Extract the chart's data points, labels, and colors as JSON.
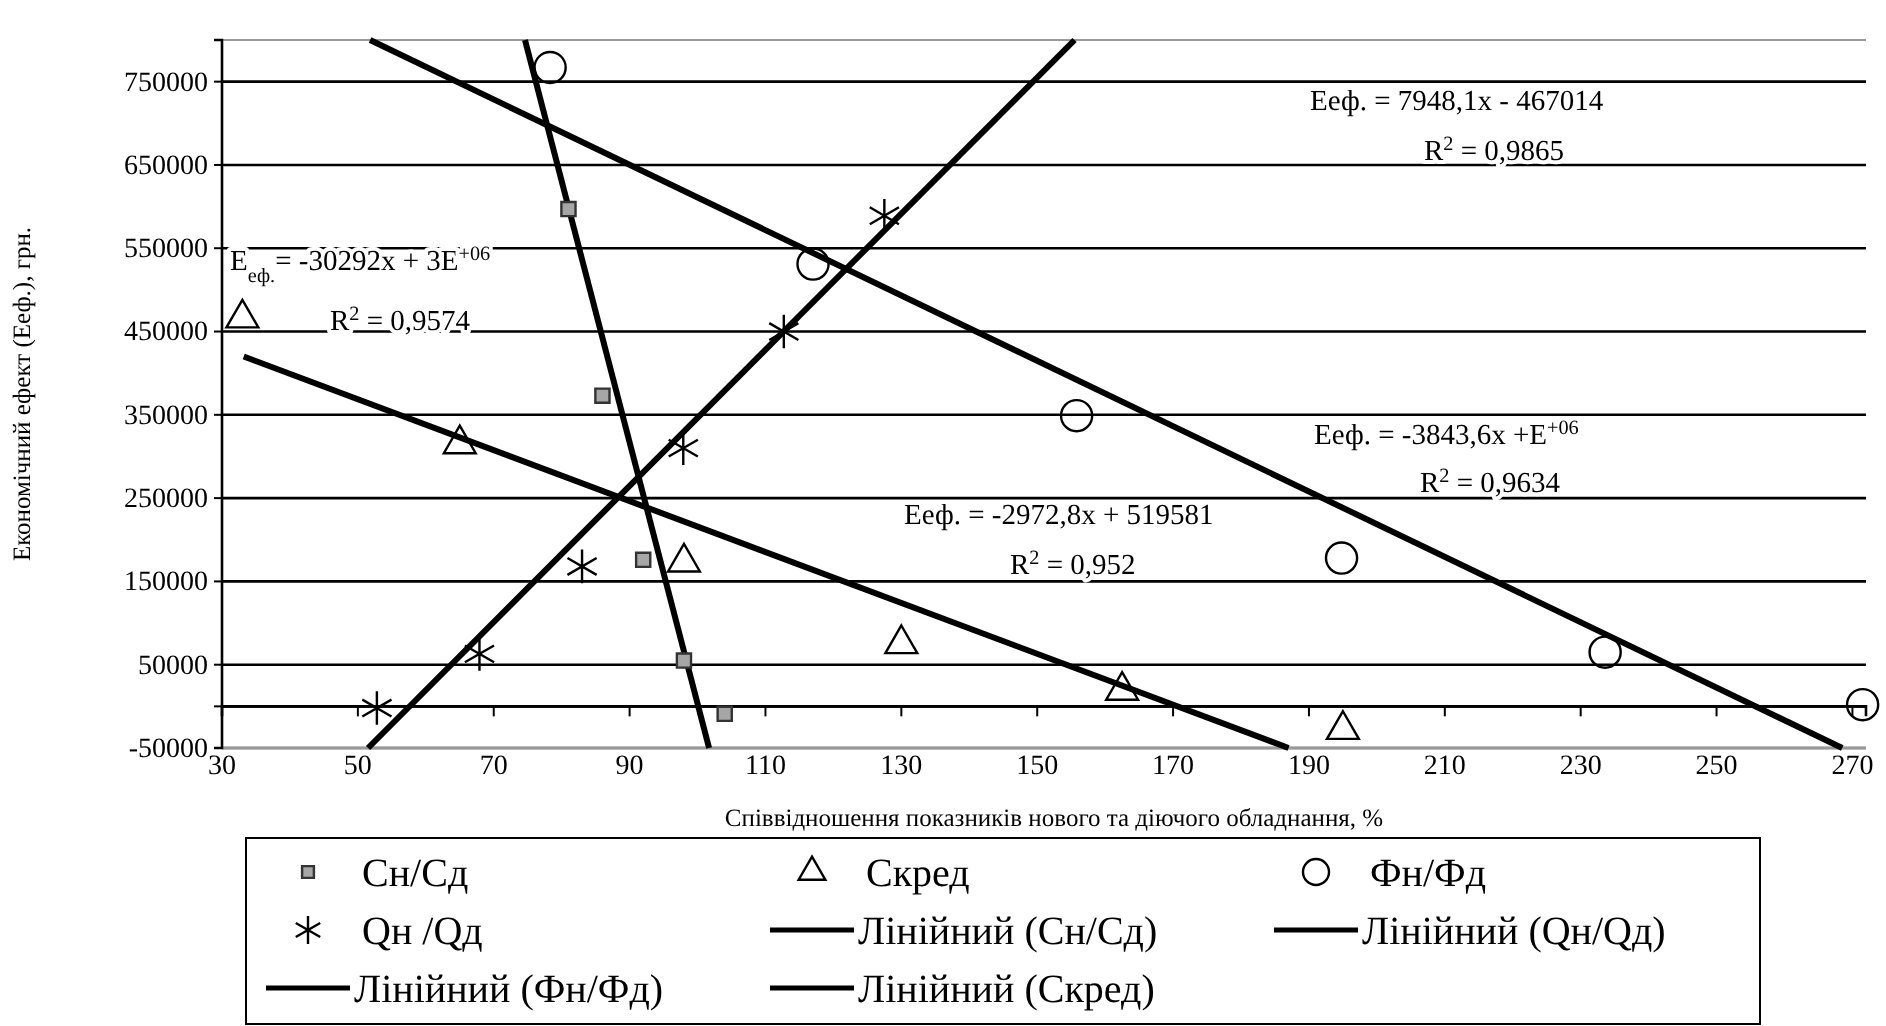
{
  "chart_data": {
    "type": "scatter",
    "xlabel": "Співвідношення показників нового та діючого обладнання, %",
    "ylabel": "Економічний ефект (Eеф.),  грн.",
    "xlim": [
      30,
      272
    ],
    "xticks": [
      30,
      50,
      70,
      90,
      110,
      130,
      150,
      170,
      190,
      210,
      230,
      250,
      270
    ],
    "ylim": [
      -50000,
      800000
    ],
    "yticks": [
      -50000,
      {
        "value": 0,
        "label": null
      },
      50000,
      150000,
      250000,
      350000,
      450000,
      550000,
      650000,
      750000
    ],
    "grid": "y",
    "legend": "bottom",
    "series": [
      {
        "name": "Сн/Сд",
        "marker": "square",
        "color": "#a6a6a6",
        "x": [
          81,
          86,
          92,
          98,
          104
        ],
        "values": [
          597000,
          373000,
          176000,
          55000,
          -9000
        ]
      },
      {
        "name": "Скред",
        "marker": "triangle",
        "color": "#000000",
        "x": [
          33,
          65,
          98,
          130,
          162.5,
          195
        ],
        "values": [
          466000,
          315000,
          173000,
          75000,
          19000,
          -28000
        ]
      },
      {
        "name": "Фн/Фд",
        "marker": "circle",
        "color": "#000000",
        "x": [
          78.3,
          117,
          155.8,
          194.8,
          233.6,
          271.5
        ],
        "values": [
          767000,
          531000,
          349000,
          178000,
          65000,
          2000
        ]
      },
      {
        "name": "Qн /Qд",
        "marker": "cross",
        "color": "#000000",
        "x": [
          52.8,
          67.9,
          83,
          97.9,
          112.7,
          127.5
        ],
        "values": [
          -2000,
          63000,
          168000,
          310000,
          450000,
          589000
        ]
      },
      {
        "name": "Лінійний (Сн/Сд)",
        "type": "line",
        "color": "#000000",
        "x": [
          74.6,
          101.7
        ],
        "values": [
          800000,
          -50000
        ]
      },
      {
        "name": "Лінійний (Qн/Qд)",
        "type": "line",
        "color": "#000000",
        "x": [
          51.5,
          155.5
        ],
        "values": [
          -50000,
          800000
        ]
      },
      {
        "name": "Лінійний (Фн/Фд)",
        "type": "line",
        "color": "#000000",
        "x": [
          51.8,
          268.5
        ],
        "values": [
          800000,
          -50000
        ]
      },
      {
        "name": "Лінійний (Скред)",
        "type": "line",
        "color": "#000000",
        "x": [
          33.2,
          187
        ],
        "values": [
          420000,
          -50000
        ]
      }
    ],
    "annotations": [
      "E$_{еф.}$= -30292x + 3E$^{+06}$",
      "R$^{2}$ = 0,9574",
      "Eеф. = 7948,1x - 467014",
      "R$^{2}$ = 0,9865",
      "Eеф. = -3843,6x +E$^{+06}$",
      "R$^{2}$ = 0,9634",
      "Eеф. = -2972,8x + 519581",
      "R$^{2}$ = 0,952"
    ]
  }
}
